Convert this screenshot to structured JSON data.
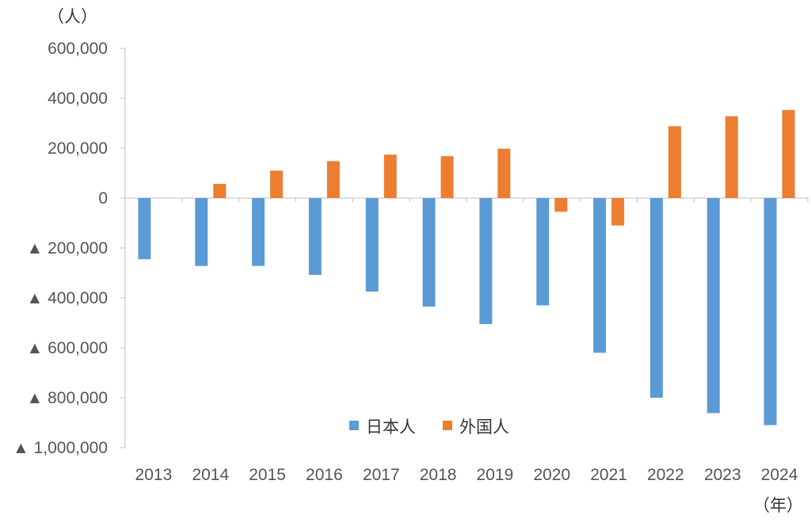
{
  "chart_data": {
    "type": "bar",
    "y_unit_label": "（人）",
    "x_unit_label": "（年）",
    "negative_marker": "▲",
    "categories": [
      "2013",
      "2014",
      "2015",
      "2016",
      "2017",
      "2018",
      "2019",
      "2020",
      "2021",
      "2022",
      "2023",
      "2024"
    ],
    "series": [
      {
        "name": "日本人",
        "color": "#5B9BD5",
        "values": [
          -245000,
          -272000,
          -272000,
          -308000,
          -375000,
          -435000,
          -505000,
          -430000,
          -620000,
          -800000,
          -862000,
          -910000
        ]
      },
      {
        "name": "外国人",
        "color": "#ED7D31",
        "values": [
          0,
          57000,
          110000,
          148000,
          174000,
          168000,
          198000,
          -55000,
          -110000,
          288000,
          328000,
          353000
        ]
      }
    ],
    "y_ticks": [
      {
        "value": 600000,
        "label": "600,000"
      },
      {
        "value": 400000,
        "label": "400,000"
      },
      {
        "value": 200000,
        "label": "200,000"
      },
      {
        "value": 0,
        "label": "0"
      },
      {
        "value": -200000,
        "label": "▲ 200,000"
      },
      {
        "value": -400000,
        "label": "▲ 400,000"
      },
      {
        "value": -600000,
        "label": "▲ 600,000"
      },
      {
        "value": -800000,
        "label": "▲ 800,000"
      },
      {
        "value": -1000000,
        "label": "▲ 1,000,000"
      }
    ],
    "ylim": [
      -1000000,
      600000
    ],
    "grid": false,
    "legend_position": "bottom-center"
  }
}
